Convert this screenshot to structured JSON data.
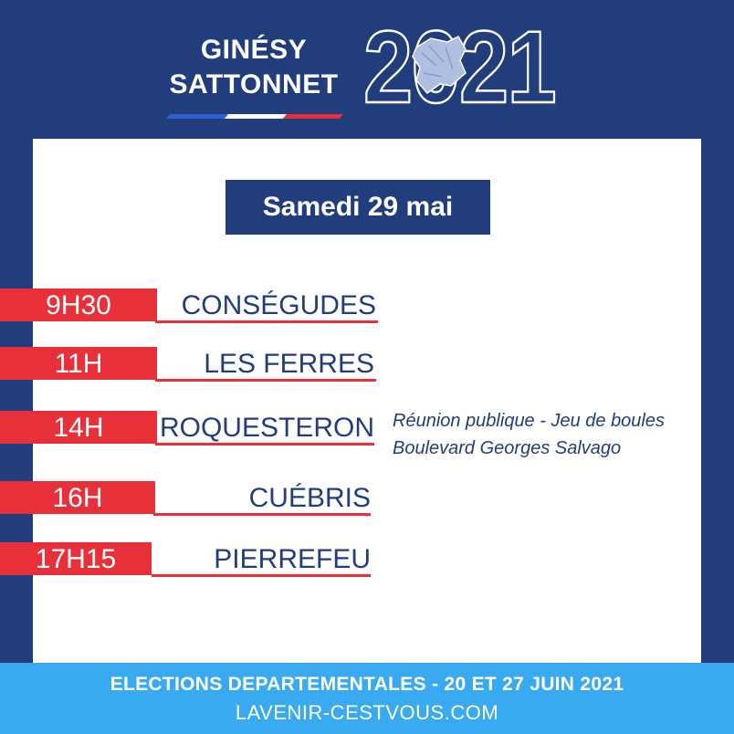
{
  "header": {
    "name_line1": "GINÉSY",
    "name_line2": "SATTONNET",
    "year": "2021",
    "map_icon": "department-map-icon",
    "tricolor_colors": [
      "#2f5fd0",
      "#ffffff",
      "#e8303b"
    ]
  },
  "badge": {
    "date": "Samedi 29 mai"
  },
  "schedule": [
    {
      "time": "9H30",
      "place": "CONSÉGUDES"
    },
    {
      "time": "11H",
      "place": "LES FERRES"
    },
    {
      "time": "14H",
      "place": "ROQUESTERON"
    },
    {
      "time": "16H",
      "place": "CUÉBRIS"
    },
    {
      "time": "17H15",
      "place": "PIERREFEU"
    }
  ],
  "note": {
    "line1": "Réunion publique - Jeu de boules",
    "line2": "Boulevard Georges Salvago"
  },
  "footer": {
    "line1": "ELECTIONS DEPARTEMENTALES - 20 ET 27 JUIN 2021",
    "line2": "LAVENIR-CESTVOUS.COM"
  },
  "colors": {
    "navy": "#213d7c",
    "red": "#e8303b",
    "sky": "#3aaaf0",
    "white": "#ffffff"
  }
}
